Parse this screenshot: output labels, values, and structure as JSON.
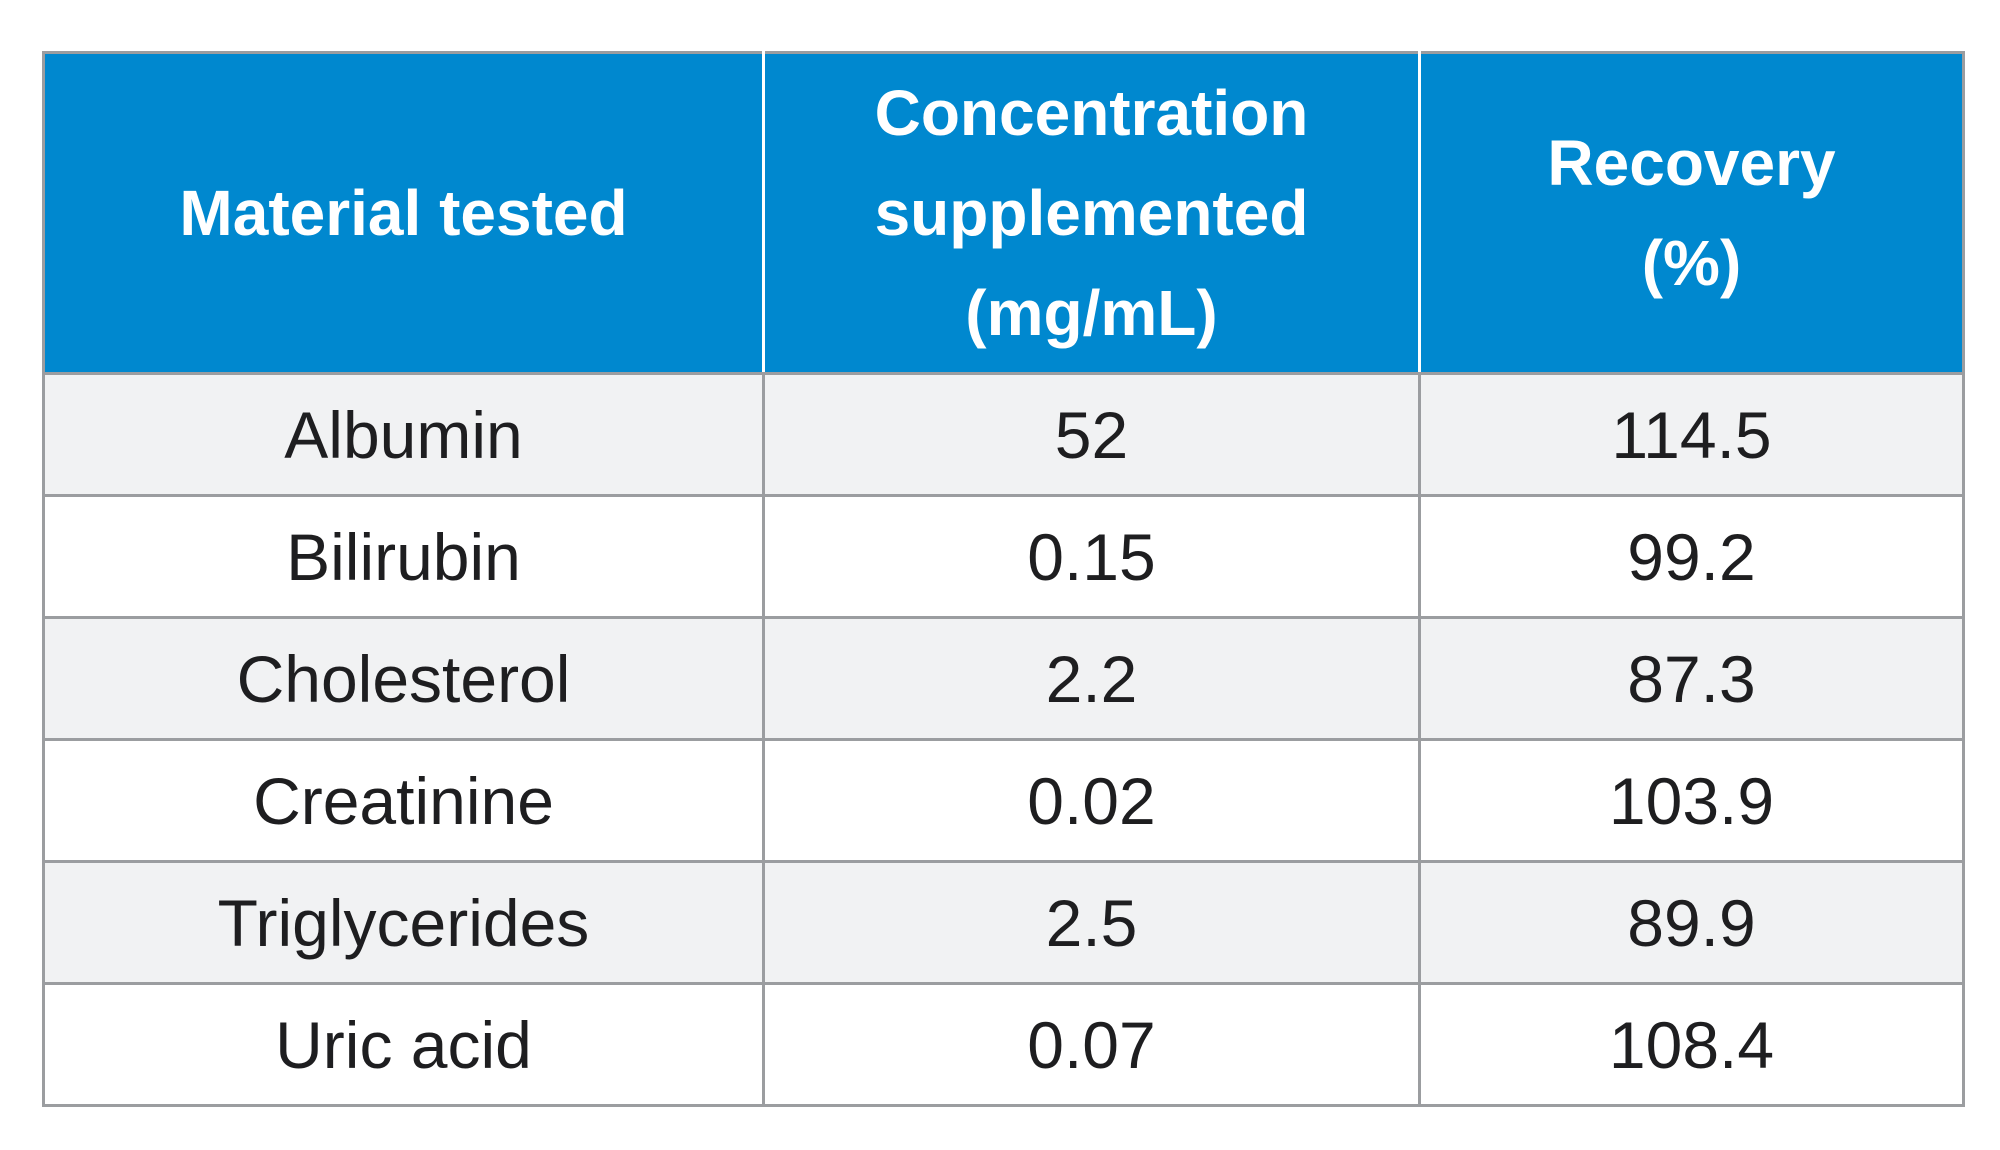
{
  "table": {
    "headers": [
      {
        "lines": [
          "Material tested"
        ]
      },
      {
        "lines": [
          "Concentration",
          "supplemented",
          "(mg/mL)"
        ]
      },
      {
        "lines": [
          "Recovery",
          "(%)"
        ]
      }
    ],
    "rows": [
      [
        "Albumin",
        "52",
        "114.5"
      ],
      [
        "Bilirubin",
        "0.15",
        "99.2"
      ],
      [
        "Cholesterol",
        "2.2",
        "87.3"
      ],
      [
        "Creatinine",
        "0.02",
        "103.9"
      ],
      [
        "Triglycerides",
        "2.5",
        "89.9"
      ],
      [
        "Uric acid",
        "0.07",
        "108.4"
      ]
    ]
  },
  "colors": {
    "header_bg": "#0088cf",
    "header_text": "#ffffff",
    "row_odd_bg": "#f1f2f3",
    "row_even_bg": "#ffffff",
    "border": "#9b9da0",
    "body_text": "#1e1e20"
  }
}
